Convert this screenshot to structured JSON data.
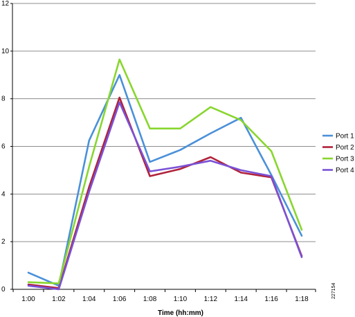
{
  "chart_data": {
    "type": "line",
    "title": "",
    "xlabel": "Time (hh:mm)",
    "ylabel": "",
    "categories": [
      "1:00",
      "1:02",
      "1:04",
      "1:06",
      "1:08",
      "1:10",
      "1:12",
      "1:14",
      "1:16",
      "1:18"
    ],
    "ylim": [
      0,
      12
    ],
    "yticks": [
      0,
      2,
      4,
      6,
      8,
      10,
      12
    ],
    "grid": "horizontal",
    "legend_position": "right",
    "series": [
      {
        "name": "Port 1",
        "color": "#4a90d9",
        "values": [
          0.7,
          0.15,
          6.25,
          9.0,
          5.35,
          5.85,
          6.55,
          7.2,
          4.8,
          2.25
        ]
      },
      {
        "name": "Port 2",
        "color": "#b0223a",
        "values": [
          0.2,
          0.05,
          4.3,
          8.05,
          4.75,
          5.05,
          5.55,
          4.9,
          4.7,
          1.4
        ]
      },
      {
        "name": "Port 3",
        "color": "#88d62e",
        "values": [
          0.3,
          0.25,
          5.15,
          9.65,
          6.75,
          6.75,
          7.65,
          7.1,
          5.8,
          2.5
        ]
      },
      {
        "name": "Port 4",
        "color": "#7a52d6",
        "values": [
          0.15,
          0.0,
          4.1,
          7.85,
          4.95,
          5.15,
          5.4,
          5.0,
          4.75,
          1.35
        ]
      }
    ],
    "figure_id": "227154"
  }
}
